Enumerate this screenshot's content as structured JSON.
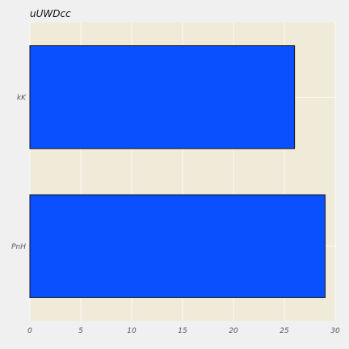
{
  "chart_data": {
    "type": "bar",
    "orientation": "horizontal",
    "title": "uUWDcc",
    "categories": [
      "kK",
      "PnH"
    ],
    "values": [
      26,
      29
    ],
    "xlim": [
      0,
      30
    ],
    "xticks": [
      0,
      5,
      10,
      15,
      20,
      25,
      30
    ],
    "grid": true,
    "colors": {
      "bar": "#0a50ff",
      "bar_edge": "#111111",
      "plot_bg": "#f0ead8",
      "grid": "#ffffff",
      "figure_bg": "#f0f0f0"
    }
  }
}
